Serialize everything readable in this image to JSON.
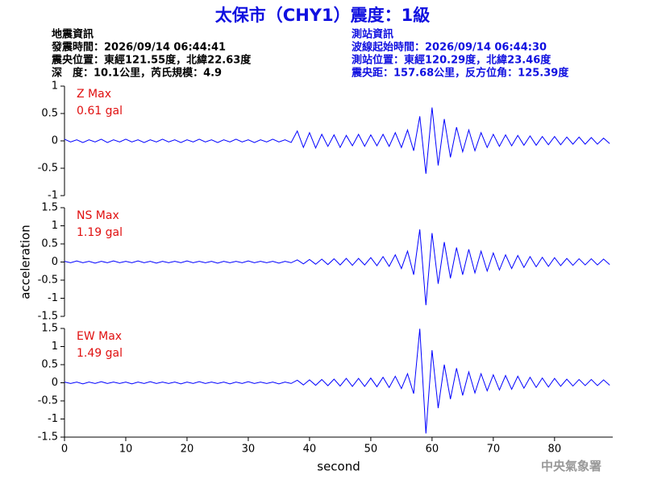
{
  "header": {
    "title": "太保市（CHY1）震度：1級",
    "left": [
      "地震資訊",
      "發震時間：2026/09/14 06:44:41",
      "震央位置：東經121.55度，北緯22.63度",
      "深　度：10.1公里，芮氏規模：4.9"
    ],
    "right": [
      "測站資訊",
      "波線起始時間：2026/09/14 06:44:30",
      "測站位置：東經120.29度，北緯23.46度",
      "震央距：157.68公里，反方位角：125.39度"
    ]
  },
  "footer": "中央氣象署",
  "chart_data": [
    {
      "type": "line",
      "color": "#0000ff",
      "annotations": [
        "Z Max",
        "0.61 gal"
      ],
      "xlim": [
        0,
        89.5
      ],
      "ylim": [
        -1,
        1
      ],
      "yticks": [
        -1,
        -0.5,
        0,
        0.5,
        1
      ],
      "x": [
        0,
        1,
        2,
        3,
        4,
        5,
        6,
        7,
        8,
        9,
        10,
        11,
        12,
        13,
        14,
        15,
        16,
        17,
        18,
        19,
        20,
        21,
        22,
        23,
        24,
        25,
        26,
        27,
        28,
        29,
        30,
        31,
        32,
        33,
        34,
        35,
        36,
        37,
        38,
        39,
        40,
        41,
        42,
        43,
        44,
        45,
        46,
        47,
        48,
        49,
        50,
        51,
        52,
        53,
        54,
        55,
        56,
        57,
        58,
        59,
        60,
        61,
        62,
        63,
        64,
        65,
        66,
        67,
        68,
        69,
        70,
        71,
        72,
        73,
        74,
        75,
        76,
        77,
        78,
        79,
        80,
        81,
        82,
        83,
        84,
        85,
        86,
        87,
        88,
        89
      ],
      "values": [
        0.03,
        -0.02,
        0.02,
        -0.03,
        0.02,
        -0.02,
        0.03,
        -0.03,
        0.02,
        -0.02,
        0.03,
        -0.02,
        0.02,
        -0.03,
        0.02,
        -0.02,
        0.03,
        -0.02,
        0.02,
        -0.03,
        0.02,
        -0.02,
        0.03,
        -0.02,
        0.02,
        -0.03,
        0.02,
        -0.02,
        0.03,
        -0.02,
        0.02,
        -0.03,
        0.02,
        -0.02,
        0.03,
        -0.02,
        0.02,
        -0.03,
        0.18,
        -0.12,
        0.15,
        -0.13,
        0.12,
        -0.1,
        0.11,
        -0.12,
        0.1,
        -0.09,
        0.12,
        -0.1,
        0.11,
        -0.09,
        0.12,
        -0.1,
        0.15,
        -0.12,
        0.2,
        -0.18,
        0.45,
        -0.6,
        0.61,
        -0.45,
        0.4,
        -0.3,
        0.25,
        -0.2,
        0.2,
        -0.18,
        0.15,
        -0.12,
        0.12,
        -0.1,
        0.11,
        -0.09,
        0.1,
        -0.08,
        0.09,
        -0.08,
        0.08,
        -0.07,
        0.08,
        -0.07,
        0.07,
        -0.06,
        0.07,
        -0.06,
        0.06,
        -0.06,
        0.05,
        -0.05
      ]
    },
    {
      "type": "line",
      "color": "#0000ff",
      "annotations": [
        "NS Max",
        "1.19 gal"
      ],
      "ylabel": "acceleration",
      "xlim": [
        0,
        89.5
      ],
      "ylim": [
        -1.5,
        1.5
      ],
      "yticks": [
        -1.5,
        -1,
        -0.5,
        0,
        0.5,
        1,
        1.5
      ],
      "x": [
        0,
        1,
        2,
        3,
        4,
        5,
        6,
        7,
        8,
        9,
        10,
        11,
        12,
        13,
        14,
        15,
        16,
        17,
        18,
        19,
        20,
        21,
        22,
        23,
        24,
        25,
        26,
        27,
        28,
        29,
        30,
        31,
        32,
        33,
        34,
        35,
        36,
        37,
        38,
        39,
        40,
        41,
        42,
        43,
        44,
        45,
        46,
        47,
        48,
        49,
        50,
        51,
        52,
        53,
        54,
        55,
        56,
        57,
        58,
        59,
        60,
        61,
        62,
        63,
        64,
        65,
        66,
        67,
        68,
        69,
        70,
        71,
        72,
        73,
        74,
        75,
        76,
        77,
        78,
        79,
        80,
        81,
        82,
        83,
        84,
        85,
        86,
        87,
        88,
        89
      ],
      "values": [
        0.02,
        -0.02,
        0.03,
        -0.02,
        0.02,
        -0.03,
        0.02,
        -0.02,
        0.03,
        -0.02,
        0.02,
        -0.02,
        0.03,
        -0.02,
        0.02,
        -0.03,
        0.02,
        -0.02,
        0.02,
        -0.02,
        0.03,
        -0.02,
        0.02,
        -0.02,
        0.02,
        -0.03,
        0.02,
        -0.02,
        0.02,
        -0.02,
        0.03,
        -0.02,
        0.02,
        -0.02,
        0.02,
        -0.03,
        0.02,
        -0.02,
        0.06,
        -0.05,
        0.07,
        -0.06,
        0.08,
        -0.07,
        0.09,
        -0.08,
        0.1,
        -0.09,
        0.1,
        -0.08,
        0.12,
        -0.1,
        0.15,
        -0.12,
        0.2,
        -0.18,
        0.3,
        -0.35,
        0.9,
        -1.19,
        0.8,
        -0.6,
        0.55,
        -0.45,
        0.4,
        -0.35,
        0.35,
        -0.3,
        0.3,
        -0.25,
        0.25,
        -0.22,
        0.2,
        -0.18,
        0.18,
        -0.15,
        0.15,
        -0.13,
        0.13,
        -0.12,
        0.12,
        -0.1,
        0.1,
        -0.09,
        0.09,
        -0.08,
        0.09,
        -0.08,
        0.08,
        -0.07
      ]
    },
    {
      "type": "line",
      "color": "#0000ff",
      "annotations": [
        "EW Max",
        "1.49 gal"
      ],
      "xlabel": "second",
      "xlim": [
        0,
        89.5
      ],
      "ylim": [
        -1.5,
        1.5
      ],
      "yticks": [
        -1.5,
        -1,
        -0.5,
        0,
        0.5,
        1,
        1.5
      ],
      "xticks": [
        0,
        10,
        20,
        30,
        40,
        50,
        60,
        70,
        80
      ],
      "x": [
        0,
        1,
        2,
        3,
        4,
        5,
        6,
        7,
        8,
        9,
        10,
        11,
        12,
        13,
        14,
        15,
        16,
        17,
        18,
        19,
        20,
        21,
        22,
        23,
        24,
        25,
        26,
        27,
        28,
        29,
        30,
        31,
        32,
        33,
        34,
        35,
        36,
        37,
        38,
        39,
        40,
        41,
        42,
        43,
        44,
        45,
        46,
        47,
        48,
        49,
        50,
        51,
        52,
        53,
        54,
        55,
        56,
        57,
        58,
        59,
        60,
        61,
        62,
        63,
        64,
        65,
        66,
        67,
        68,
        69,
        70,
        71,
        72,
        73,
        74,
        75,
        76,
        77,
        78,
        79,
        80,
        81,
        82,
        83,
        84,
        85,
        86,
        87,
        88,
        89
      ],
      "values": [
        0.02,
        -0.02,
        0.02,
        -0.03,
        0.02,
        -0.02,
        0.03,
        -0.02,
        0.02,
        -0.02,
        0.02,
        -0.03,
        0.02,
        -0.02,
        0.03,
        -0.02,
        0.02,
        -0.02,
        0.02,
        -0.03,
        0.02,
        -0.02,
        0.03,
        -0.02,
        0.02,
        -0.02,
        0.02,
        -0.03,
        0.02,
        -0.02,
        0.03,
        -0.02,
        0.02,
        -0.02,
        0.02,
        -0.03,
        0.02,
        -0.02,
        0.07,
        -0.06,
        0.08,
        -0.07,
        0.09,
        -0.08,
        0.1,
        -0.09,
        0.12,
        -0.1,
        0.12,
        -0.1,
        0.13,
        -0.11,
        0.15,
        -0.13,
        0.18,
        -0.16,
        0.25,
        -0.3,
        1.49,
        -1.4,
        0.9,
        -0.7,
        0.5,
        -0.45,
        0.4,
        -0.35,
        0.3,
        -0.28,
        0.25,
        -0.22,
        0.22,
        -0.2,
        0.2,
        -0.18,
        0.18,
        -0.15,
        0.15,
        -0.13,
        0.13,
        -0.12,
        0.12,
        -0.1,
        0.1,
        -0.09,
        0.09,
        -0.08,
        0.09,
        -0.08,
        0.08,
        -0.07
      ]
    }
  ]
}
